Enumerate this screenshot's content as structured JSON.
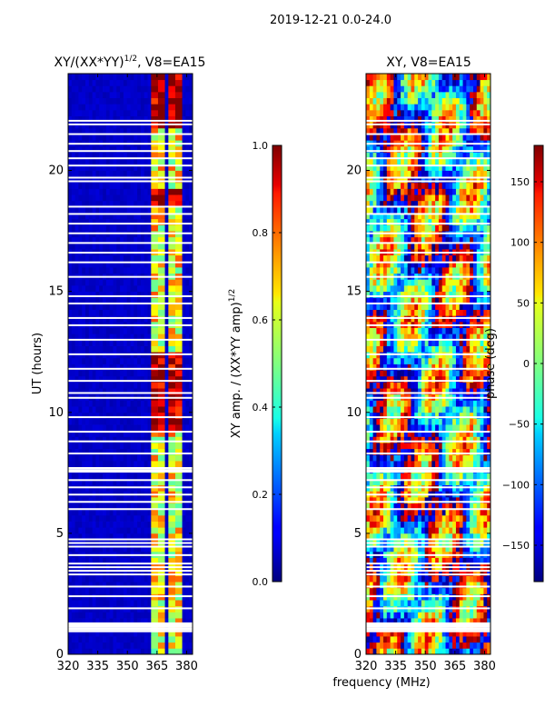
{
  "figure": {
    "suptitle": "2019-12-21 0.0-24.0",
    "shared_xlabel": "frequency (MHz)"
  },
  "chart_data": [
    {
      "type": "heatmap",
      "title": "XY/(XX*YY)",
      "title_exponent": "1/2",
      "title_suffix": ", V8=EA15",
      "xlabel": "",
      "ylabel": "UT (hours)",
      "xlim": [
        320,
        383
      ],
      "ylim": [
        0,
        24
      ],
      "xticks": [
        320,
        335,
        350,
        365,
        380
      ],
      "yticks": [
        0,
        5,
        10,
        15,
        20
      ],
      "colorbar": {
        "label": "XY amp. / (XX*YY amp)",
        "label_exponent": "1/2",
        "range": [
          0.0,
          1.0
        ],
        "ticks": [
          "0.0",
          "0.2",
          "0.4",
          "0.6",
          "0.8",
          "1.0"
        ],
        "tick_values": [
          0.0,
          0.2,
          0.4,
          0.6,
          0.8,
          1.0
        ]
      },
      "notes": "Mostly low amplitude (~0.05) below ~362 MHz; higher-amplitude vertical stripes near 363, 367, 372, 376 MHz; data gaps appear as white horizontal bands."
    },
    {
      "type": "heatmap",
      "title": "XY, V8=EA15",
      "xlabel": "",
      "ylabel": "",
      "xlim": [
        320,
        383
      ],
      "ylim": [
        0,
        24
      ],
      "xticks": [
        320,
        335,
        350,
        365,
        380
      ],
      "yticks": [
        0,
        5,
        10,
        15,
        20
      ],
      "colorbar": {
        "label": "phase (deg)",
        "range": [
          -180,
          180
        ],
        "ticks": [
          "150",
          "100",
          "50",
          "0",
          "−50",
          "−100",
          "−150"
        ],
        "tick_values": [
          150,
          100,
          50,
          0,
          -50,
          -100,
          -150
        ]
      },
      "notes": "Phase varies widely across full range with smooth gradients over time and frequency; same white data-gap bands as amplitude panel."
    }
  ],
  "gap_rows_hours": [
    0.95,
    1.02,
    1.08,
    1.15,
    1.22,
    1.28,
    1.9,
    2.4,
    2.8,
    3.3,
    3.45,
    3.6,
    3.75,
    4.1,
    4.45,
    4.6,
    4.75,
    6.0,
    6.3,
    6.6,
    6.9,
    7.2,
    7.55,
    7.62,
    7.7,
    8.3,
    8.8,
    9.2,
    9.8,
    10.6,
    10.8,
    11.3,
    11.8,
    12.4,
    13.0,
    13.6,
    13.9,
    14.5,
    14.8,
    15.6,
    16.2,
    16.6,
    17.0,
    17.4,
    17.8,
    18.2,
    18.5,
    19.55,
    19.7,
    20.2,
    20.5,
    20.8,
    21.1,
    21.5,
    21.9,
    22.05
  ]
}
